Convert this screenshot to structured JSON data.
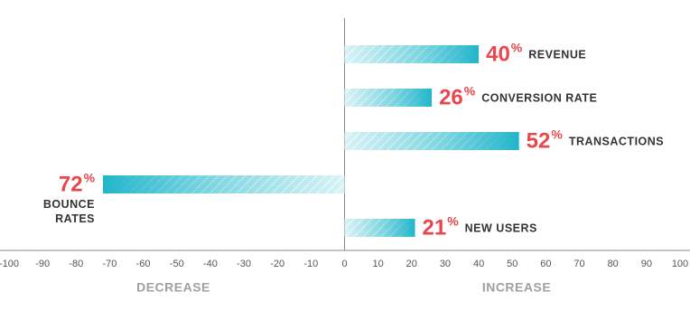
{
  "chart_data": {
    "type": "bar",
    "orientation": "horizontal",
    "categories": [
      "REVENUE",
      "CONVERSION RATE",
      "TRANSACTIONS",
      "BOUNCE RATES",
      "NEW USERS"
    ],
    "values": [
      40,
      26,
      52,
      -72,
      21
    ],
    "value_labels": [
      "40",
      "26",
      "52",
      "72",
      "21"
    ],
    "value_suffix": "%",
    "color": "#22b5cb",
    "label_color": "#e9474c",
    "xlim": [
      -100,
      100
    ],
    "xticks": [
      -100,
      -90,
      -80,
      -70,
      -60,
      -50,
      -40,
      -30,
      -20,
      -10,
      0,
      10,
      20,
      30,
      40,
      50,
      60,
      70,
      80,
      90,
      100
    ],
    "negative_label": "DECREASE",
    "positive_label": "INCREASE"
  }
}
